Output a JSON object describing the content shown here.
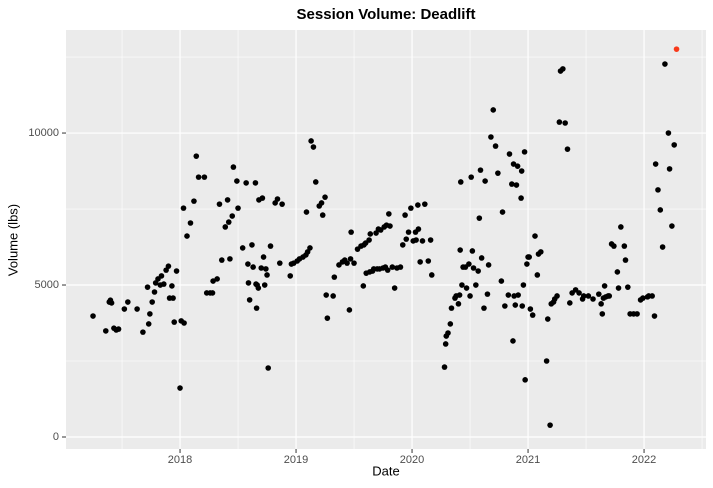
{
  "chart_data": {
    "type": "scatter",
    "title": "Session Volume: Deadlift",
    "xlabel": "Date",
    "ylabel": "Volume (lbs)",
    "xlim": [
      2017.017,
      2022.534
    ],
    "xticks": [
      2018,
      2019,
      2020,
      2021,
      2022
    ],
    "ylim": [
      -395,
      13390
    ],
    "yticks": [
      0,
      5000,
      10000
    ],
    "grid": true,
    "series": [
      {
        "color": "#000000",
        "x": [
          2017.25,
          2017.36,
          2017.39,
          2017.4,
          2017.41,
          2017.43,
          2017.45,
          2017.47,
          2017.52,
          2017.55,
          2017.63,
          2017.68,
          2017.72,
          2017.73,
          2017.74,
          2017.76,
          2017.78,
          2017.79,
          2017.81,
          2017.83,
          2017.84,
          2017.86,
          2017.88,
          2017.9,
          2017.91,
          2017.93,
          2017.94,
          2017.95,
          2017.97,
          2018.0,
          2018.01,
          2018.03,
          2018.035,
          2018.06,
          2018.09,
          2018.12,
          2018.14,
          2018.16,
          2018.21,
          2018.23,
          2018.26,
          2018.28,
          2018.285,
          2018.32,
          2018.34,
          2018.36,
          2018.39,
          2018.41,
          2018.42,
          2018.43,
          2018.45,
          2018.46,
          2018.49,
          2018.5,
          2018.54,
          2018.57,
          2018.585,
          2018.59,
          2018.6,
          2018.62,
          2018.63,
          2018.65,
          2018.655,
          2018.66,
          2018.665,
          2018.675,
          2018.68,
          2018.7,
          2018.71,
          2018.72,
          2018.73,
          2018.74,
          2018.75,
          2018.76,
          2018.78,
          2018.82,
          2018.84,
          2018.86,
          2018.88,
          2018.95,
          2018.96,
          2018.98,
          2019.01,
          2019.03,
          2019.06,
          2019.085,
          2019.09,
          2019.1,
          2019.12,
          2019.13,
          2019.15,
          2019.17,
          2019.2,
          2019.22,
          2019.23,
          2019.25,
          2019.26,
          2019.27,
          2019.32,
          2019.33,
          2019.37,
          2019.4,
          2019.42,
          2019.44,
          2019.46,
          2019.47,
          2019.475,
          2019.5,
          2019.53,
          2019.56,
          2019.58,
          2019.585,
          2019.6,
          2019.605,
          2019.63,
          2019.635,
          2019.64,
          2019.66,
          2019.67,
          2019.69,
          2019.7,
          2019.71,
          2019.72,
          2019.73,
          2019.75,
          2019.76,
          2019.77,
          2019.78,
          2019.79,
          2019.8,
          2019.81,
          2019.83,
          2019.85,
          2019.87,
          2019.9,
          2019.92,
          2019.94,
          2019.95,
          2019.97,
          2019.99,
          2020.01,
          2020.03,
          2020.035,
          2020.05,
          2020.055,
          2020.07,
          2020.09,
          2020.11,
          2020.14,
          2020.16,
          2020.17,
          2020.28,
          2020.29,
          2020.295,
          2020.31,
          2020.33,
          2020.34,
          2020.37,
          2020.38,
          2020.4,
          2020.41,
          2020.415,
          2020.42,
          2020.43,
          2020.44,
          2020.46,
          2020.47,
          2020.49,
          2020.5,
          2020.51,
          2020.52,
          2020.53,
          2020.55,
          2020.57,
          2020.58,
          2020.59,
          2020.6,
          2020.62,
          2020.63,
          2020.65,
          2020.66,
          2020.68,
          2020.7,
          2020.72,
          2020.74,
          2020.77,
          2020.78,
          2020.8,
          2020.83,
          2020.84,
          2020.86,
          2020.87,
          2020.875,
          2020.88,
          2020.89,
          2020.9,
          2020.91,
          2020.915,
          2020.94,
          2020.945,
          2020.95,
          2020.96,
          2020.97,
          2020.975,
          2020.99,
          2021.0,
          2021.01,
          2021.02,
          2021.04,
          2021.06,
          2021.08,
          2021.09,
          2021.11,
          2021.16,
          2021.17,
          2021.19,
          2021.2,
          2021.22,
          2021.23,
          2021.25,
          2021.27,
          2021.28,
          2021.3,
          2021.32,
          2021.34,
          2021.36,
          2021.38,
          2021.41,
          2021.44,
          2021.47,
          2021.48,
          2021.52,
          2021.56,
          2021.61,
          2021.63,
          2021.64,
          2021.65,
          2021.66,
          2021.67,
          2021.69,
          2021.7,
          2021.72,
          2021.74,
          2021.77,
          2021.78,
          2021.8,
          2021.83,
          2021.84,
          2021.86,
          2021.88,
          2021.91,
          2021.94,
          2021.97,
          2021.99,
          2022.03,
          2022.04,
          2022.07,
          2022.09,
          2022.1,
          2022.12,
          2022.14,
          2022.16,
          2022.18,
          2022.21,
          2022.22,
          2022.24,
          2022.26
        ],
        "values": [
          3980,
          3490,
          4440,
          4500,
          4410,
          3580,
          3520,
          3550,
          4210,
          4440,
          4210,
          3450,
          4930,
          3720,
          4050,
          4440,
          4770,
          5070,
          5200,
          5000,
          5300,
          5030,
          5490,
          5620,
          4570,
          4970,
          4570,
          3780,
          5460,
          1610,
          3820,
          7530,
          3750,
          6610,
          7040,
          7760,
          9240,
          8550,
          8550,
          4740,
          4740,
          4740,
          5130,
          5200,
          7660,
          5820,
          6910,
          7800,
          7070,
          5860,
          7270,
          8880,
          8420,
          7530,
          6220,
          8360,
          5690,
          5070,
          4510,
          6320,
          5590,
          8360,
          5030,
          4240,
          5000,
          4900,
          7800,
          5560,
          7860,
          5920,
          5000,
          5530,
          5330,
          2270,
          6280,
          7700,
          7830,
          5720,
          7660,
          5300,
          5690,
          5720,
          5790,
          5860,
          5920,
          5990,
          7400,
          6090,
          6220,
          9740,
          9540,
          8390,
          7600,
          7700,
          7300,
          7890,
          4670,
          3910,
          4640,
          5260,
          5660,
          5760,
          5820,
          5720,
          4180,
          5860,
          6740,
          5720,
          6180,
          6280,
          4970,
          6320,
          6380,
          5390,
          6480,
          5430,
          6680,
          5460,
          5530,
          6710,
          5530,
          6840,
          5530,
          6810,
          5560,
          6910,
          5590,
          6970,
          5490,
          7340,
          6940,
          5590,
          4900,
          5560,
          5590,
          6320,
          7300,
          6510,
          6740,
          7530,
          6450,
          6740,
          6480,
          7630,
          6840,
          5760,
          6450,
          7660,
          5790,
          6480,
          5330,
          2300,
          3060,
          3320,
          3420,
          3720,
          4240,
          4570,
          4640,
          4380,
          4670,
          6150,
          8390,
          5000,
          5590,
          5590,
          4900,
          5690,
          4640,
          8550,
          6120,
          5560,
          5000,
          5460,
          7200,
          8780,
          5890,
          4240,
          8420,
          4700,
          5660,
          9870,
          10760,
          9570,
          8680,
          5130,
          7400,
          4310,
          4670,
          9310,
          8320,
          3160,
          8980,
          4640,
          4340,
          8290,
          8910,
          4670,
          7860,
          8750,
          4310,
          5000,
          9380,
          1880,
          5690,
          5920,
          5920,
          4210,
          4010,
          6610,
          5330,
          6020,
          6090,
          2500,
          3880,
          390,
          4380,
          4440,
          4540,
          4640,
          10360,
          12040,
          12110,
          10330,
          9470,
          4410,
          4740,
          4840,
          4740,
          4540,
          4640,
          4640,
          4540,
          4700,
          4380,
          4050,
          4570,
          4970,
          4610,
          4640,
          4640,
          6350,
          6280,
          5430,
          4900,
          6910,
          6280,
          5820,
          4930,
          4050,
          4050,
          4050,
          4510,
          4570,
          4610,
          4640,
          4640,
          3980,
          8980,
          8130,
          7470,
          6250,
          12270,
          10000,
          8820,
          6940,
          9610
        ]
      },
      {
        "color": "#f8391a",
        "x": [
          2022.28
        ],
        "values": [
          12760
        ]
      }
    ]
  }
}
